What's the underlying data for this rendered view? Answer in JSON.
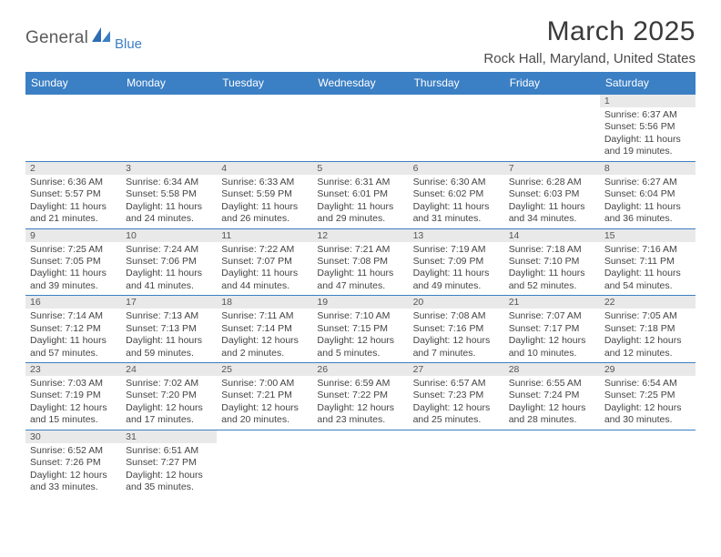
{
  "brand": {
    "main": "General",
    "sub": "Blue"
  },
  "title": "March 2025",
  "location": "Rock Hall, Maryland, United States",
  "colors": {
    "header_bg": "#3b7fc4",
    "header_text": "#ffffff",
    "daynum_bg": "#e9e9e9",
    "rule": "#3b7fc4",
    "body_text": "#444444",
    "logo_gray": "#5a5a5a",
    "logo_blue": "#3b7fc4"
  },
  "typography": {
    "title_fontsize": 30,
    "location_fontsize": 15,
    "weekday_fontsize": 12,
    "cell_fontsize": 10.5
  },
  "weekdays": [
    "Sunday",
    "Monday",
    "Tuesday",
    "Wednesday",
    "Thursday",
    "Friday",
    "Saturday"
  ],
  "weeks": [
    [
      null,
      null,
      null,
      null,
      null,
      null,
      {
        "n": "1",
        "sr": "6:37 AM",
        "ss": "5:56 PM",
        "dl": "11 hours and 19 minutes."
      }
    ],
    [
      {
        "n": "2",
        "sr": "6:36 AM",
        "ss": "5:57 PM",
        "dl": "11 hours and 21 minutes."
      },
      {
        "n": "3",
        "sr": "6:34 AM",
        "ss": "5:58 PM",
        "dl": "11 hours and 24 minutes."
      },
      {
        "n": "4",
        "sr": "6:33 AM",
        "ss": "5:59 PM",
        "dl": "11 hours and 26 minutes."
      },
      {
        "n": "5",
        "sr": "6:31 AM",
        "ss": "6:01 PM",
        "dl": "11 hours and 29 minutes."
      },
      {
        "n": "6",
        "sr": "6:30 AM",
        "ss": "6:02 PM",
        "dl": "11 hours and 31 minutes."
      },
      {
        "n": "7",
        "sr": "6:28 AM",
        "ss": "6:03 PM",
        "dl": "11 hours and 34 minutes."
      },
      {
        "n": "8",
        "sr": "6:27 AM",
        "ss": "6:04 PM",
        "dl": "11 hours and 36 minutes."
      }
    ],
    [
      {
        "n": "9",
        "sr": "7:25 AM",
        "ss": "7:05 PM",
        "dl": "11 hours and 39 minutes."
      },
      {
        "n": "10",
        "sr": "7:24 AM",
        "ss": "7:06 PM",
        "dl": "11 hours and 41 minutes."
      },
      {
        "n": "11",
        "sr": "7:22 AM",
        "ss": "7:07 PM",
        "dl": "11 hours and 44 minutes."
      },
      {
        "n": "12",
        "sr": "7:21 AM",
        "ss": "7:08 PM",
        "dl": "11 hours and 47 minutes."
      },
      {
        "n": "13",
        "sr": "7:19 AM",
        "ss": "7:09 PM",
        "dl": "11 hours and 49 minutes."
      },
      {
        "n": "14",
        "sr": "7:18 AM",
        "ss": "7:10 PM",
        "dl": "11 hours and 52 minutes."
      },
      {
        "n": "15",
        "sr": "7:16 AM",
        "ss": "7:11 PM",
        "dl": "11 hours and 54 minutes."
      }
    ],
    [
      {
        "n": "16",
        "sr": "7:14 AM",
        "ss": "7:12 PM",
        "dl": "11 hours and 57 minutes."
      },
      {
        "n": "17",
        "sr": "7:13 AM",
        "ss": "7:13 PM",
        "dl": "11 hours and 59 minutes."
      },
      {
        "n": "18",
        "sr": "7:11 AM",
        "ss": "7:14 PM",
        "dl": "12 hours and 2 minutes."
      },
      {
        "n": "19",
        "sr": "7:10 AM",
        "ss": "7:15 PM",
        "dl": "12 hours and 5 minutes."
      },
      {
        "n": "20",
        "sr": "7:08 AM",
        "ss": "7:16 PM",
        "dl": "12 hours and 7 minutes."
      },
      {
        "n": "21",
        "sr": "7:07 AM",
        "ss": "7:17 PM",
        "dl": "12 hours and 10 minutes."
      },
      {
        "n": "22",
        "sr": "7:05 AM",
        "ss": "7:18 PM",
        "dl": "12 hours and 12 minutes."
      }
    ],
    [
      {
        "n": "23",
        "sr": "7:03 AM",
        "ss": "7:19 PM",
        "dl": "12 hours and 15 minutes."
      },
      {
        "n": "24",
        "sr": "7:02 AM",
        "ss": "7:20 PM",
        "dl": "12 hours and 17 minutes."
      },
      {
        "n": "25",
        "sr": "7:00 AM",
        "ss": "7:21 PM",
        "dl": "12 hours and 20 minutes."
      },
      {
        "n": "26",
        "sr": "6:59 AM",
        "ss": "7:22 PM",
        "dl": "12 hours and 23 minutes."
      },
      {
        "n": "27",
        "sr": "6:57 AM",
        "ss": "7:23 PM",
        "dl": "12 hours and 25 minutes."
      },
      {
        "n": "28",
        "sr": "6:55 AM",
        "ss": "7:24 PM",
        "dl": "12 hours and 28 minutes."
      },
      {
        "n": "29",
        "sr": "6:54 AM",
        "ss": "7:25 PM",
        "dl": "12 hours and 30 minutes."
      }
    ],
    [
      {
        "n": "30",
        "sr": "6:52 AM",
        "ss": "7:26 PM",
        "dl": "12 hours and 33 minutes."
      },
      {
        "n": "31",
        "sr": "6:51 AM",
        "ss": "7:27 PM",
        "dl": "12 hours and 35 minutes."
      },
      null,
      null,
      null,
      null,
      null
    ]
  ],
  "labels": {
    "sunrise": "Sunrise:",
    "sunset": "Sunset:",
    "daylight": "Daylight:"
  }
}
